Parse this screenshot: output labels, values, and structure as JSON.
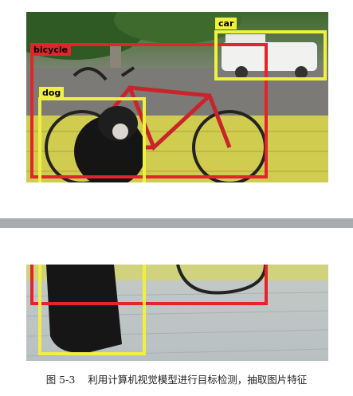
{
  "figure": {
    "caption_number": "图 5-3",
    "caption_text": "利用计算机视觉模型进行目标检测，抽取图片特征"
  },
  "detections": [
    {
      "label": "bicycle",
      "color": "#e3242b"
    },
    {
      "label": "car",
      "color": "#f0f040"
    },
    {
      "label": "dog",
      "color": "#f0f040"
    }
  ],
  "colors": {
    "bicycle_box": "#e3242b",
    "car_box": "#f0f040",
    "dog_box": "#f0f040",
    "divider_band": "#a9acae"
  }
}
